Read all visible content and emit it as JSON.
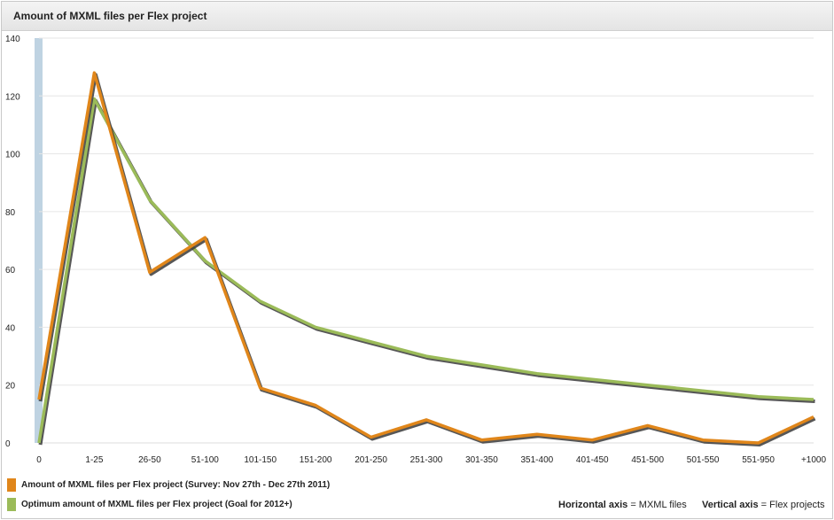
{
  "header": {
    "title": "Amount of MXML files per Flex project"
  },
  "chart_data": {
    "type": "line",
    "x": [
      "0",
      "1-25",
      "26-50",
      "51-100",
      "101-150",
      "151-200",
      "201-250",
      "251-300",
      "301-350",
      "351-400",
      "401-450",
      "451-500",
      "501-550",
      "551-950",
      "+1000"
    ],
    "ylim": [
      0,
      140
    ],
    "yticks": [
      0,
      20,
      40,
      60,
      80,
      100,
      120,
      140
    ],
    "grid": true,
    "series": [
      {
        "name": "Amount of MXML files per Flex project (Survey: Nov 27th - Dec 27th 2011)",
        "color": "#e0861a",
        "values": [
          15,
          128,
          59,
          71,
          19,
          13,
          2,
          8,
          1,
          3,
          1,
          6,
          1,
          0,
          9
        ]
      },
      {
        "name": "Optimum amount of MXML files per Flex project (Goal for 2012+)",
        "color": "#9bbb59",
        "values": [
          0,
          119,
          84,
          63,
          49,
          40,
          35,
          30,
          27,
          24,
          22,
          20,
          18,
          16,
          15
        ]
      }
    ]
  },
  "footer": {
    "horizontal_label": "Horizontal axis",
    "horizontal_value": "= MXML files",
    "vertical_label": "Vertical axis",
    "vertical_value": "= Flex projects"
  }
}
